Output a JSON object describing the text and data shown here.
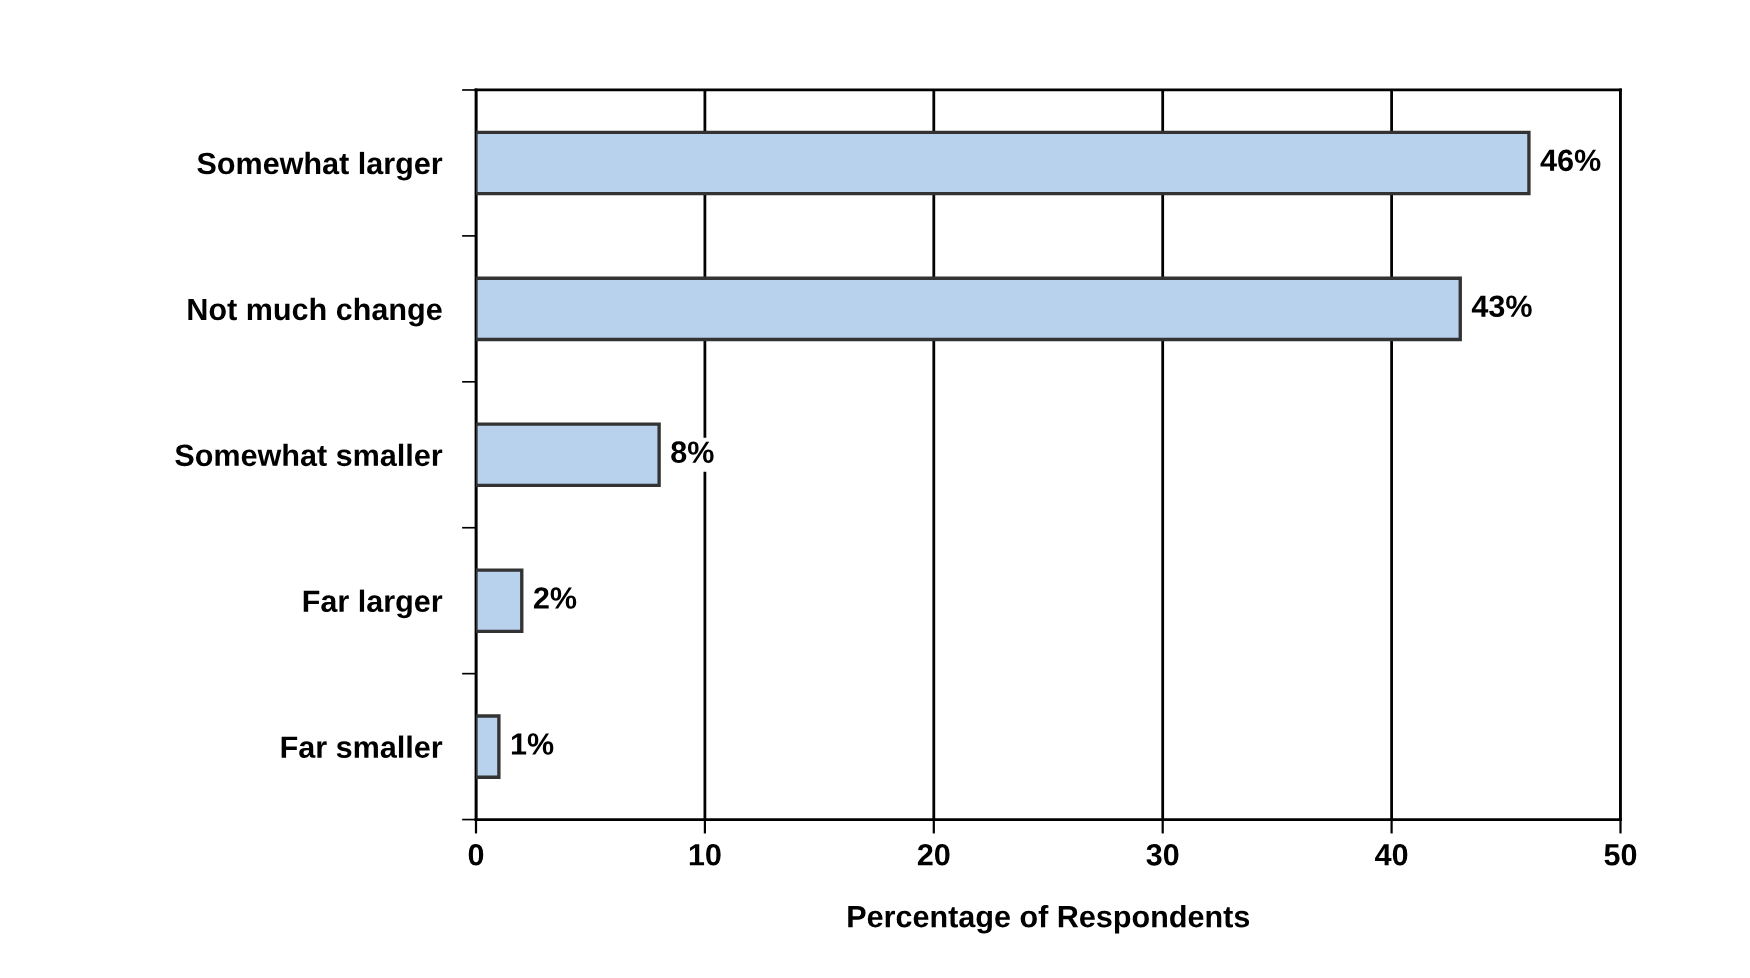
{
  "chart_data": {
    "type": "bar",
    "orientation": "horizontal",
    "xlabel": "Percentage of Respondents",
    "categories": [
      "Somewhat larger",
      "Not much change",
      "Somewhat smaller",
      "Far larger",
      "Far smaller"
    ],
    "values": [
      46,
      43,
      8,
      2,
      1
    ],
    "value_labels": [
      "46%",
      "43%",
      "8%",
      "2%",
      "1%"
    ],
    "color": "#b8d1ec",
    "xlim": [
      0,
      50
    ],
    "xticks": [
      0,
      10,
      20,
      30,
      40,
      50
    ],
    "grid": "x",
    "legend": false
  }
}
